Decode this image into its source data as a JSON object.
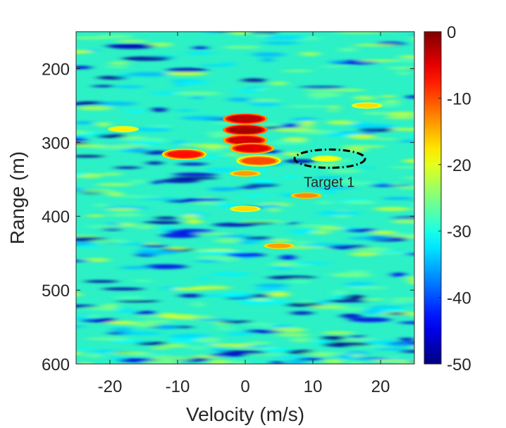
{
  "chart_data": {
    "type": "heatmap",
    "title": "",
    "xlabel": "Velocity (m/s)",
    "ylabel": "Range (m)",
    "xlim": [
      -25,
      25
    ],
    "ylim": [
      150,
      600
    ],
    "y_reversed": true,
    "xticks": [
      -20,
      -10,
      0,
      10,
      20
    ],
    "yticks": [
      200,
      300,
      400,
      500,
      600
    ],
    "colorbar": {
      "label": "",
      "range": [
        -50,
        0
      ],
      "ticks": [
        0,
        -10,
        -20,
        -30,
        -40,
        -50
      ],
      "colormap": "jet",
      "colors": [
        "#00008f",
        "#0000ff",
        "#00ffff",
        "#ffff00",
        "#ff0000",
        "#800000"
      ]
    },
    "hotspots": [
      {
        "velocity": 0,
        "range": 268,
        "level": -3
      },
      {
        "velocity": 0,
        "range": 283,
        "level": -2
      },
      {
        "velocity": 0,
        "range": 297,
        "level": -4
      },
      {
        "velocity": 1,
        "range": 308,
        "level": -5
      },
      {
        "velocity": -9,
        "range": 316,
        "level": -7
      },
      {
        "velocity": 2,
        "range": 325,
        "level": -10
      },
      {
        "velocity": 12,
        "range": 322,
        "level": -19
      },
      {
        "velocity": 0,
        "range": 342,
        "level": -14
      },
      {
        "velocity": 9,
        "range": 372,
        "level": -13
      },
      {
        "velocity": 0,
        "range": 390,
        "level": -17
      },
      {
        "velocity": 18,
        "range": 250,
        "level": -17
      },
      {
        "velocity": 5,
        "range": 440,
        "level": -14
      },
      {
        "velocity": -18,
        "range": 282,
        "level": -18
      }
    ],
    "annotations": [
      {
        "text": "Target 1",
        "velocity": 12.5,
        "range": 322,
        "shape": "dash-dot ellipse"
      }
    ]
  }
}
